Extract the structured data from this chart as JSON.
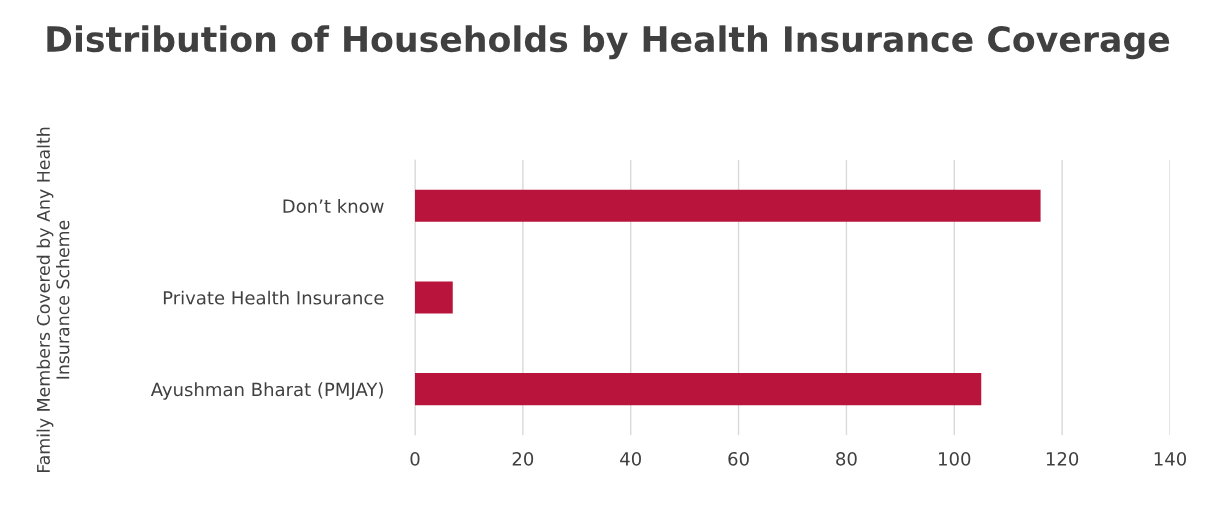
{
  "chart_data": {
    "type": "bar",
    "orientation": "horizontal",
    "title": "Distribution of Households by Health Insurance Coverage",
    "ylabel": "Family Members Covered by Any Health Insurance Scheme",
    "categories": [
      "Don’t know",
      "Private Health Insurance",
      "Ayushman Bharat (PMJAY)"
    ],
    "series": [
      {
        "color": "#b8143c",
        "values": [
          116,
          7,
          105
        ]
      }
    ],
    "xlim": [
      0,
      140
    ],
    "xticks": [
      0,
      20,
      40,
      60,
      80,
      100,
      120,
      140
    ],
    "grid": "x"
  }
}
